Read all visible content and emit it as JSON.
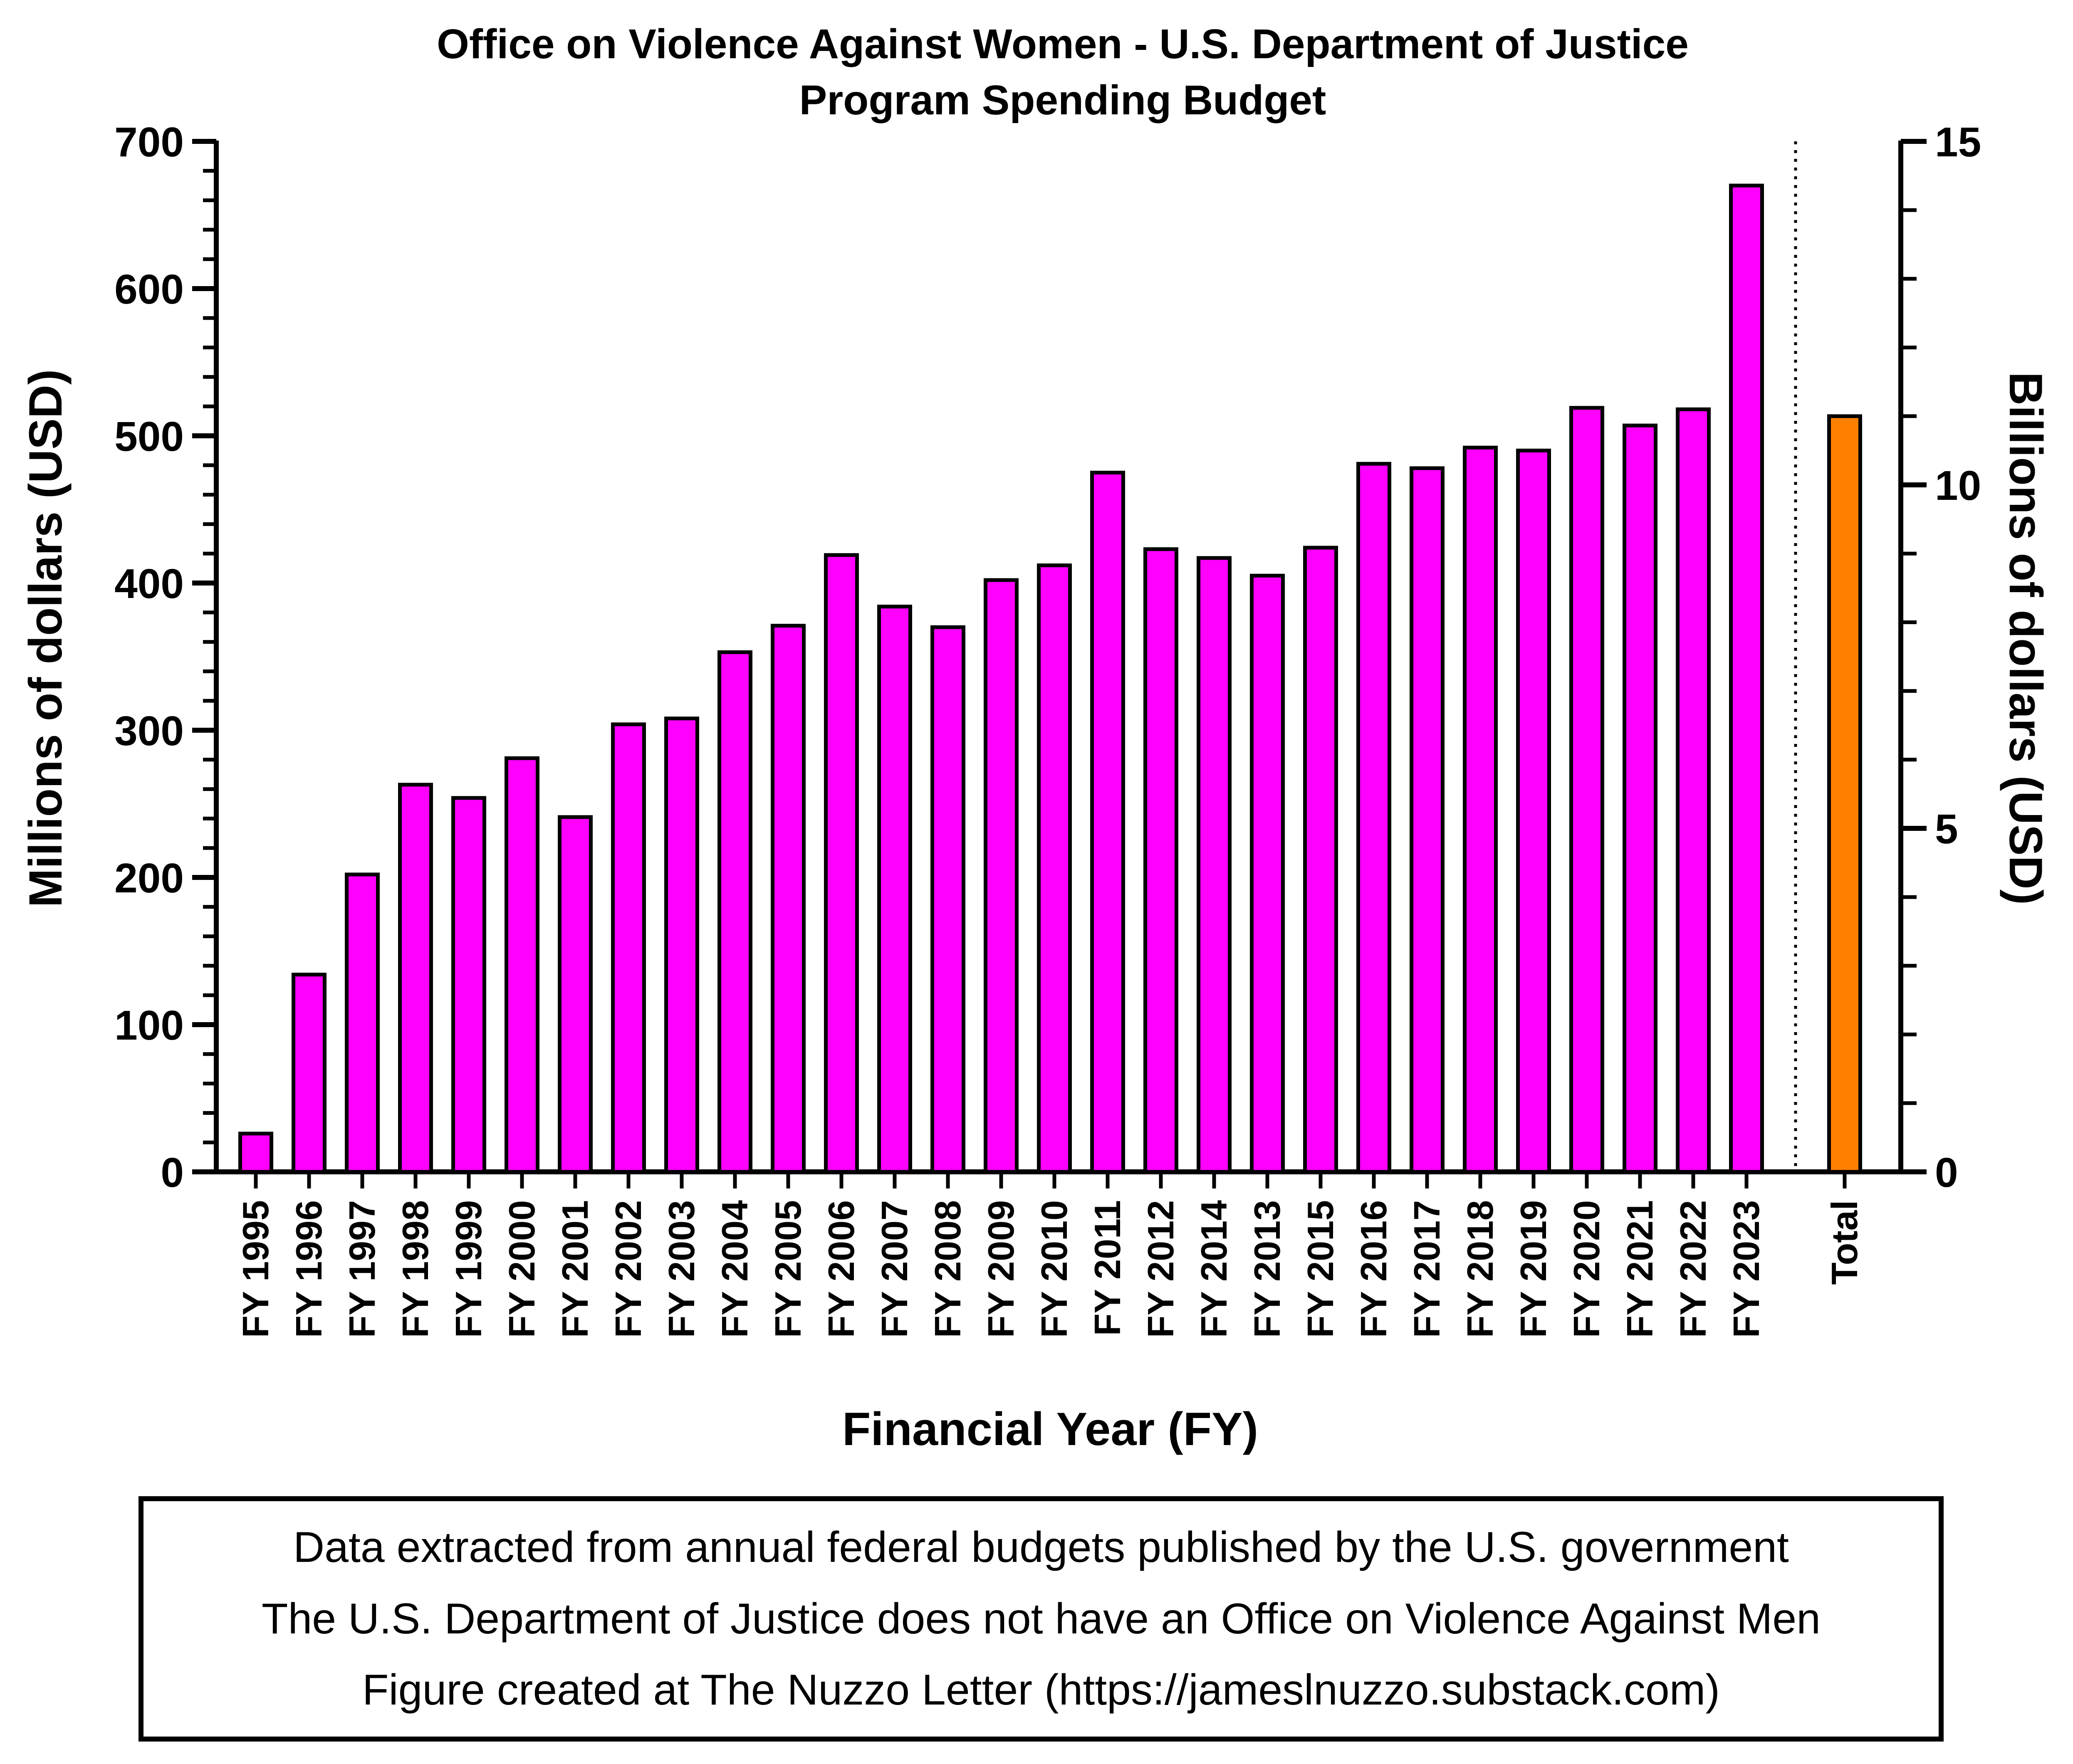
{
  "chart_data": {
    "type": "bar",
    "title": [
      "Office on Violence Against Women - U.S. Department of Justice",
      "Program Spending Budget"
    ],
    "xlabel": "Financial Year (FY)",
    "ylabel": "Millions of dollars (USD)",
    "y2label": "Billions of dollars (USD)",
    "ylim": [
      0,
      700
    ],
    "yticks": [
      0,
      100,
      200,
      300,
      400,
      500,
      600,
      700
    ],
    "y2lim": [
      0,
      15
    ],
    "y2ticks": [
      0,
      5,
      10,
      15
    ],
    "grid": false,
    "categories": [
      "FY 1995",
      "FY 1996",
      "FY 1997",
      "FY 1998",
      "FY 1999",
      "FY 2000",
      "FY 2001",
      "FY 2002",
      "FY 2003",
      "FY 2004",
      "FY 2005",
      "FY 2006",
      "FY 2007",
      "FY 2008",
      "FY 2009",
      "FY 2010",
      "FY 2011",
      "FY 2012",
      "FY 2014",
      "FY 2013",
      "FY 2015",
      "FY 2016",
      "FY 2017",
      "FY 2018",
      "FY 2019",
      "FY 2020",
      "FY 2021",
      "FY 2022",
      "FY 2023"
    ],
    "values": [
      26,
      134,
      202,
      263,
      254,
      281,
      241,
      304,
      308,
      353,
      371,
      419,
      384,
      370,
      402,
      412,
      475,
      423,
      417,
      405,
      424,
      481,
      478,
      492,
      490,
      519,
      507,
      518,
      670
    ],
    "bar_color": "#ff00ff",
    "total": {
      "label": "Total",
      "value_billions": 11.0,
      "color": "#ff8000"
    }
  },
  "notes": [
    "Data extracted from annual federal budgets published by the U.S. government",
    "The U.S. Department of Justice does not have an Office on Violence Against Men",
    "Figure created at The Nuzzo Letter (https://jameslnuzzo.substack.com)"
  ]
}
